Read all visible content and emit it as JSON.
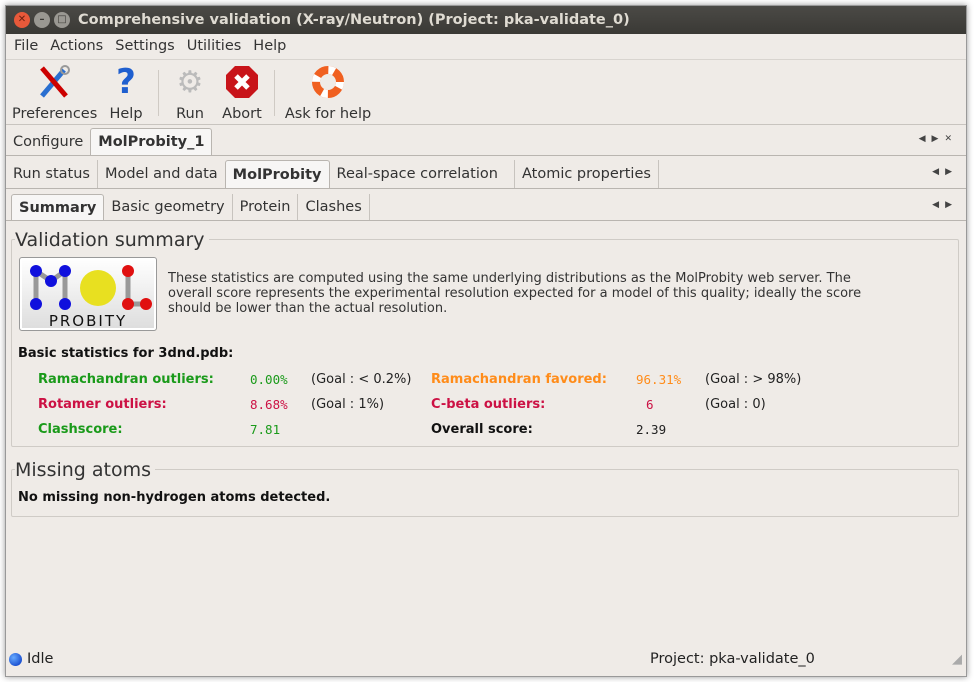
{
  "window": {
    "title": "Comprehensive validation (X-ray/Neutron) (Project: pka-validate_0)"
  },
  "menu": [
    "File",
    "Actions",
    "Settings",
    "Utilities",
    "Help"
  ],
  "toolbar": [
    {
      "label": "Preferences",
      "icon": "tools-icon"
    },
    {
      "label": "Help",
      "icon": "question-icon"
    },
    {
      "label": "Run",
      "icon": "gear-icon"
    },
    {
      "label": "Abort",
      "icon": "stop-icon"
    },
    {
      "label": "Ask for help",
      "icon": "lifebuoy-icon"
    }
  ],
  "tabs1": [
    {
      "label": "Configure"
    },
    {
      "label": "MolProbity_1",
      "active": true
    }
  ],
  "tabs2": [
    {
      "label": "Run status"
    },
    {
      "label": "Model and data"
    },
    {
      "label": "MolProbity",
      "active": true
    },
    {
      "label": "Real-space correlation"
    },
    {
      "label": "Atomic properties"
    }
  ],
  "tabs3": [
    {
      "label": "Summary",
      "active": true
    },
    {
      "label": "Basic geometry"
    },
    {
      "label": "Protein"
    },
    {
      "label": "Clashes"
    }
  ],
  "summary": {
    "title": "Validation summary",
    "logo_text": "MOL PROBITY",
    "description": "These statistics are computed using the same underlying distributions as the MolProbity web server.  The overall score represents the experimental resolution expected for a model of this quality; ideally the score should be lower than the actual resolution.",
    "basic_heading": "Basic statistics for 3dnd.pdb:",
    "stats": [
      {
        "label": "Ramachandran outliers:",
        "value": "0.00%",
        "goal": "(Goal : < 0.2%)",
        "color": "#1a9a1a"
      },
      {
        "label": "Ramachandran favored:",
        "value": "96.31%",
        "goal": "(Goal : > 98%)",
        "color": "#ff8c1a"
      },
      {
        "label": "Rotamer outliers:",
        "value": "8.68%",
        "goal": "(Goal : 1%)",
        "color": "#cc1144"
      },
      {
        "label": "C-beta outliers:",
        "value": "6",
        "goal": "(Goal : 0)",
        "color": "#cc1144"
      },
      {
        "label": "Clashscore:",
        "value": "7.81",
        "goal": "",
        "color": "#1a9a1a"
      },
      {
        "label": "Overall score:",
        "value": "2.39",
        "goal": "",
        "color": "#111111"
      }
    ]
  },
  "missing": {
    "title": "Missing atoms",
    "text": "No missing non-hydrogen atoms detected."
  },
  "status": {
    "state": "Idle",
    "project": "Project: pka-validate_0"
  }
}
